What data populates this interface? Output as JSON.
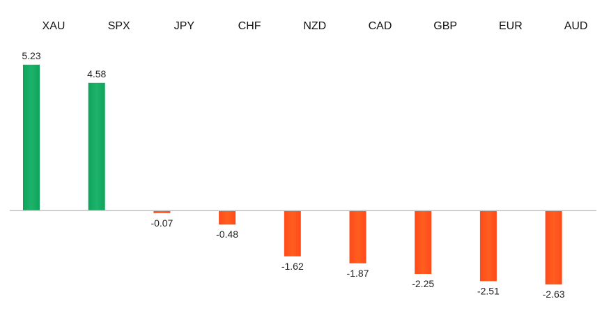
{
  "chart_data": {
    "type": "bar",
    "categories": [
      "XAU",
      "SPX",
      "JPY",
      "CHF",
      "NZD",
      "CAD",
      "GBP",
      "EUR",
      "AUD"
    ],
    "values": [
      5.23,
      4.58,
      -0.07,
      -0.48,
      -1.62,
      -1.87,
      -2.25,
      -2.51,
      -2.63
    ],
    "value_labels": [
      "5.23",
      "4.58",
      "-0.07",
      "-0.48",
      "-1.62",
      "-1.87",
      "-2.25",
      "-2.51",
      "-2.63"
    ],
    "title": "",
    "xlabel": "",
    "ylabel": "",
    "ylim": [
      -2.9,
      5.5
    ],
    "grid": false,
    "legend": "none",
    "category_labels_position": "top",
    "colors": {
      "positive_top": "#1db36b",
      "positive_bottom": "#0fa35a",
      "negative_top": "#ff4a1a",
      "negative_bottom": "#ff5e1f",
      "axis": "#bfbfbf"
    }
  }
}
